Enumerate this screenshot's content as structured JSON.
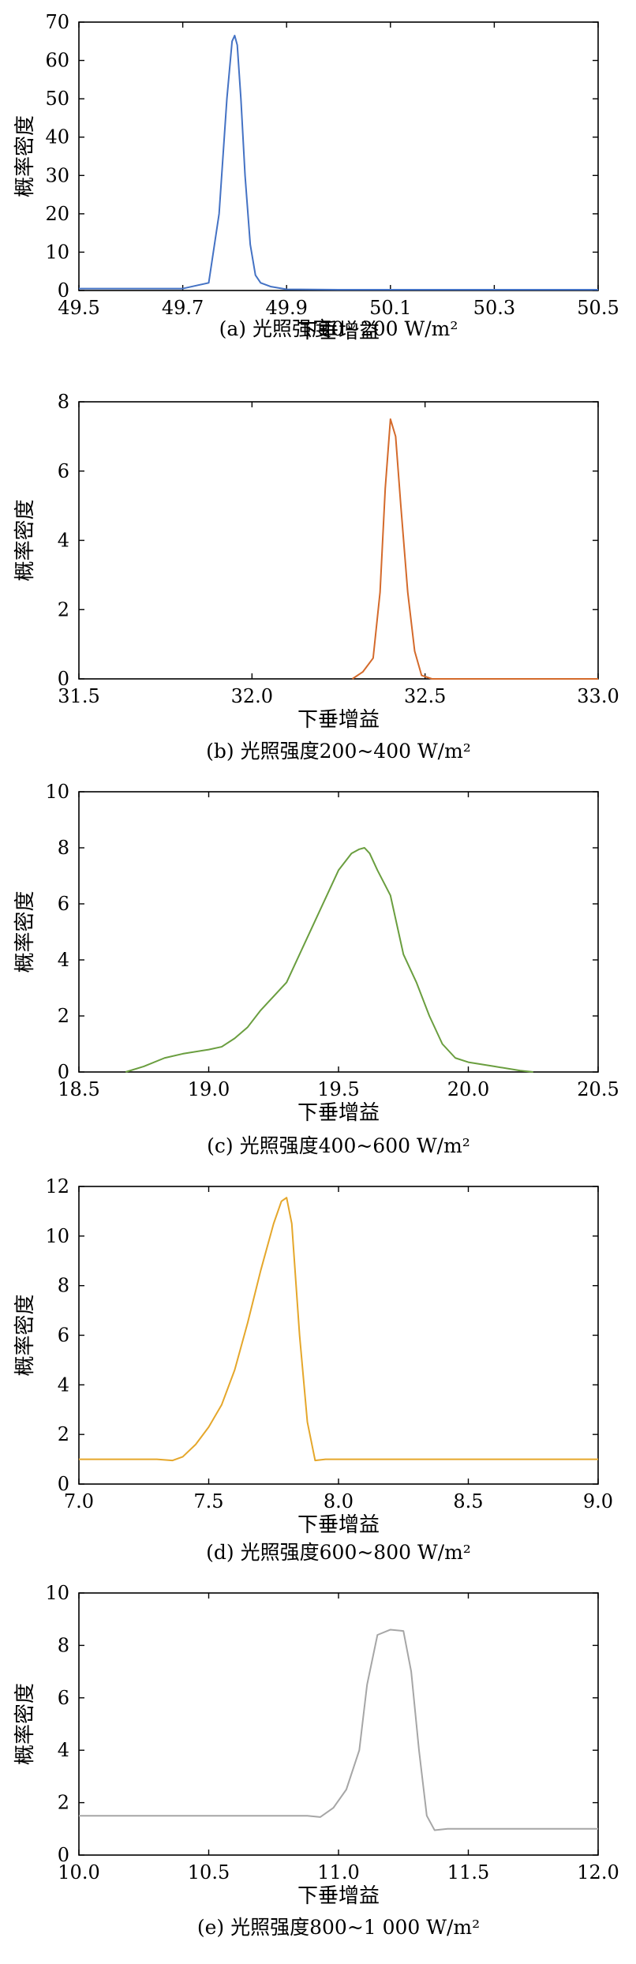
{
  "chart_data": [
    {
      "type": "line",
      "panel_label": "(a)",
      "caption": "(a) 光照强度0~200 W/m²",
      "xlabel": "下垂增益",
      "ylabel": "概率密度",
      "xlim": [
        49.5,
        50.5
      ],
      "ylim": [
        0,
        70
      ],
      "xticks": [
        49.5,
        49.7,
        49.9,
        50.1,
        50.3,
        50.5
      ],
      "yticks": [
        0,
        10,
        20,
        30,
        40,
        50,
        60,
        70
      ],
      "xtick_labels": [
        "49.5",
        "49.7",
        "49.9",
        "50.1",
        "50.3",
        "50.5"
      ],
      "ytick_labels": [
        "0",
        "10",
        "20",
        "30",
        "40",
        "50",
        "60",
        "70"
      ],
      "color": "#4472c4",
      "x": [
        49.5,
        49.7,
        49.75,
        49.77,
        49.785,
        49.795,
        49.8,
        49.805,
        49.812,
        49.82,
        49.83,
        49.84,
        49.85,
        49.87,
        49.9,
        50.0,
        50.5
      ],
      "y": [
        0.5,
        0.5,
        2,
        20,
        50,
        65,
        66.5,
        64,
        50,
        30,
        12,
        4,
        2,
        1,
        0.3,
        0.2,
        0.2
      ]
    },
    {
      "type": "line",
      "panel_label": "(b)",
      "caption": "(b) 光照强度200~400 W/m²",
      "xlabel": "下垂增益",
      "ylabel": "概率密度",
      "xlim": [
        31.5,
        33.0
      ],
      "ylim": [
        0,
        8
      ],
      "xticks": [
        31.5,
        32.0,
        32.5,
        33.0
      ],
      "yticks": [
        0,
        2,
        4,
        6,
        8
      ],
      "xtick_labels": [
        "31.5",
        "32.0",
        "32.5",
        "33.0"
      ],
      "ytick_labels": [
        "0",
        "2",
        "4",
        "6",
        "8"
      ],
      "color": "#d46a2b",
      "x": [
        32.29,
        32.32,
        32.35,
        32.37,
        32.385,
        32.4,
        32.415,
        32.43,
        32.45,
        32.47,
        32.49,
        32.52,
        32.7,
        33.0
      ],
      "y": [
        0,
        0.2,
        0.6,
        2.5,
        5.5,
        7.5,
        7.0,
        5.0,
        2.5,
        0.8,
        0.1,
        0,
        0,
        0
      ]
    },
    {
      "type": "line",
      "panel_label": "(c)",
      "caption": "(c) 光照强度400~600 W/m²",
      "xlabel": "下垂增益",
      "ylabel": "概率密度",
      "xlim": [
        18.5,
        20.5
      ],
      "ylim": [
        0,
        10
      ],
      "xticks": [
        18.5,
        19.0,
        19.5,
        20.0,
        20.5
      ],
      "yticks": [
        0,
        2,
        4,
        6,
        8,
        10
      ],
      "xtick_labels": [
        "18.5",
        "19.0",
        "19.5",
        "20.0",
        "20.5"
      ],
      "ytick_labels": [
        "0",
        "2",
        "4",
        "6",
        "8",
        "10"
      ],
      "color": "#6a9e3f",
      "x": [
        18.68,
        18.75,
        18.83,
        18.9,
        19.0,
        19.05,
        19.1,
        19.15,
        19.2,
        19.25,
        19.3,
        19.35,
        19.4,
        19.45,
        19.5,
        19.55,
        19.58,
        19.6,
        19.62,
        19.65,
        19.7,
        19.75,
        19.8,
        19.85,
        19.9,
        19.95,
        20.0,
        20.1,
        20.2,
        20.25
      ],
      "y": [
        0,
        0.2,
        0.5,
        0.65,
        0.8,
        0.9,
        1.2,
        1.6,
        2.2,
        2.7,
        3.2,
        4.2,
        5.2,
        6.2,
        7.2,
        7.8,
        7.95,
        8.0,
        7.8,
        7.2,
        6.3,
        4.2,
        3.2,
        2.0,
        1.0,
        0.5,
        0.35,
        0.2,
        0.05,
        0
      ]
    },
    {
      "type": "line",
      "panel_label": "(d)",
      "caption": "(d) 光照强度600~800 W/m²",
      "xlabel": "下垂增益",
      "ylabel": "概率密度",
      "xlim": [
        7.0,
        9.0
      ],
      "ylim": [
        0,
        12
      ],
      "xticks": [
        7.0,
        7.5,
        8.0,
        8.5,
        9.0
      ],
      "yticks": [
        0,
        2,
        4,
        6,
        8,
        10,
        12
      ],
      "xtick_labels": [
        "7.0",
        "7.5",
        "8.0",
        "8.5",
        "9.0"
      ],
      "ytick_labels": [
        "0",
        "2",
        "4",
        "6",
        "8",
        "10",
        "12"
      ],
      "color": "#e5a72b",
      "x": [
        7.0,
        7.3,
        7.36,
        7.4,
        7.45,
        7.5,
        7.55,
        7.6,
        7.65,
        7.7,
        7.75,
        7.78,
        7.8,
        7.82,
        7.85,
        7.88,
        7.91,
        7.95,
        8.0,
        8.5,
        9.0
      ],
      "y": [
        1.0,
        1.0,
        0.95,
        1.1,
        1.6,
        2.3,
        3.2,
        4.6,
        6.5,
        8.6,
        10.5,
        11.4,
        11.55,
        10.5,
        6.0,
        2.5,
        0.95,
        1.0,
        1.0,
        1.0,
        1.0
      ]
    },
    {
      "type": "line",
      "panel_label": "(e)",
      "caption": "(e) 光照强度800~1 000 W/m²",
      "xlabel": "下垂增益",
      "ylabel": "概率密度",
      "xlim": [
        10.0,
        12.0
      ],
      "ylim": [
        0,
        10
      ],
      "xticks": [
        10.0,
        10.5,
        11.0,
        11.5,
        12.0
      ],
      "yticks": [
        0,
        2,
        4,
        6,
        8,
        10
      ],
      "xtick_labels": [
        "10.0",
        "10.5",
        "11.0",
        "11.5",
        "12.0"
      ],
      "ytick_labels": [
        "0",
        "2",
        "4",
        "6",
        "8",
        "10"
      ],
      "color": "#a6a6a6",
      "x": [
        10.0,
        10.88,
        10.93,
        10.98,
        11.03,
        11.08,
        11.11,
        11.15,
        11.2,
        11.25,
        11.28,
        11.31,
        11.34,
        11.37,
        11.42,
        11.5,
        12.0
      ],
      "y": [
        1.5,
        1.5,
        1.45,
        1.8,
        2.5,
        4.0,
        6.5,
        8.4,
        8.6,
        8.55,
        7.0,
        4.0,
        1.5,
        0.95,
        1.0,
        1.0,
        1.0
      ]
    }
  ]
}
